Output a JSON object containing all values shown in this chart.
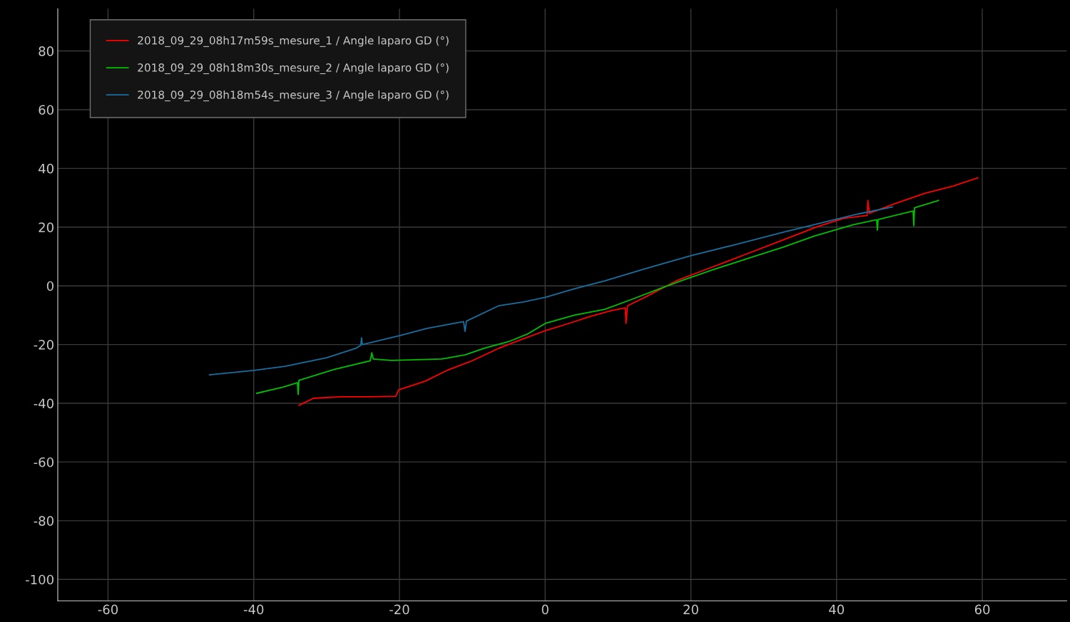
{
  "chart_data": {
    "type": "line",
    "xlim": [
      -66.9,
      71.6
    ],
    "ylim": [
      -107.3,
      94.4
    ],
    "xticks": [
      -60,
      -40,
      -20,
      0,
      20,
      40,
      60
    ],
    "yticks": [
      -100,
      -80,
      -60,
      -40,
      -20,
      0,
      20,
      40,
      60,
      80
    ],
    "grid": true,
    "legend": "top left",
    "series": [
      {
        "name": "2018_09_29_08h17m59s_mesure_1 / Angle laparo GD (°)",
        "color": "#ff0000",
        "x": [
          -33.8,
          -31.8,
          -28,
          -24,
          -20.5,
          -20.1,
          -16.5,
          -13.3,
          -10,
          -6.4,
          -3.5,
          0,
          3,
          6.2,
          9,
          11.0,
          11.1,
          11.3,
          14,
          18,
          22,
          27.7,
          32,
          37.5,
          41,
          44.2,
          44.3,
          44.5,
          48,
          52.1,
          56,
          59.4
        ],
        "values": [
          -40.7,
          -38.3,
          -37.8,
          -37.8,
          -37.6,
          -35.4,
          -32.5,
          -28.6,
          -25.5,
          -21.3,
          -18.5,
          -15.3,
          -13,
          -10.4,
          -8.5,
          -7.5,
          -12.8,
          -6.8,
          -3.5,
          1.7,
          5.5,
          10.9,
          15,
          20.3,
          23,
          24.0,
          29.1,
          24.7,
          28,
          31.5,
          34,
          36.8
        ]
      },
      {
        "name": "2018_09_29_08h18m30s_mesure_2 / Angle laparo GD (°)",
        "color": "#00c000",
        "x": [
          -39.6,
          -36,
          -34.0,
          -33.9,
          -33.8,
          -29,
          -24.0,
          -23.8,
          -23.6,
          -21.1,
          -14.2,
          -11,
          -8.4,
          -5,
          -2.5,
          0,
          4,
          8.2,
          12,
          16,
          19,
          22.8,
          28,
          32.6,
          37,
          42.3,
          45.5,
          45.6,
          45.7,
          50.5,
          50.6,
          50.7,
          54
        ],
        "values": [
          -36.6,
          -34.5,
          -33.0,
          -37.0,
          -32.2,
          -28.5,
          -25.5,
          -22.8,
          -24.9,
          -25.4,
          -24.9,
          -23.5,
          -21.3,
          -19,
          -16.5,
          -12.8,
          -10,
          -8.0,
          -4.5,
          -0.7,
          2,
          5.3,
          9.5,
          13.1,
          17,
          20.8,
          22.5,
          19,
          22.6,
          25.5,
          20.5,
          26.6,
          29.1
        ]
      },
      {
        "name": "2018_09_29_08h18m54s_mesure_3 / Angle laparo GD (°)",
        "color": "#1a6fa0",
        "x": [
          -46.1,
          -40,
          -35.7,
          -30,
          -26,
          -25.3,
          -25.2,
          -25.1,
          -20,
          -16.2,
          -11.2,
          -11.0,
          -10.8,
          -6.4,
          -3,
          0,
          4,
          8.2,
          14,
          19.9,
          26,
          32.6,
          38,
          43,
          47.7
        ],
        "values": [
          -30.3,
          -28.8,
          -27.4,
          -24.5,
          -21.3,
          -20.2,
          -17.7,
          -20.0,
          -17,
          -14.5,
          -12.2,
          -15.5,
          -12.0,
          -6.8,
          -5.5,
          -3.9,
          -1,
          1.7,
          6,
          10.2,
          14,
          18.2,
          21.5,
          24.5,
          26.9
        ]
      }
    ]
  }
}
